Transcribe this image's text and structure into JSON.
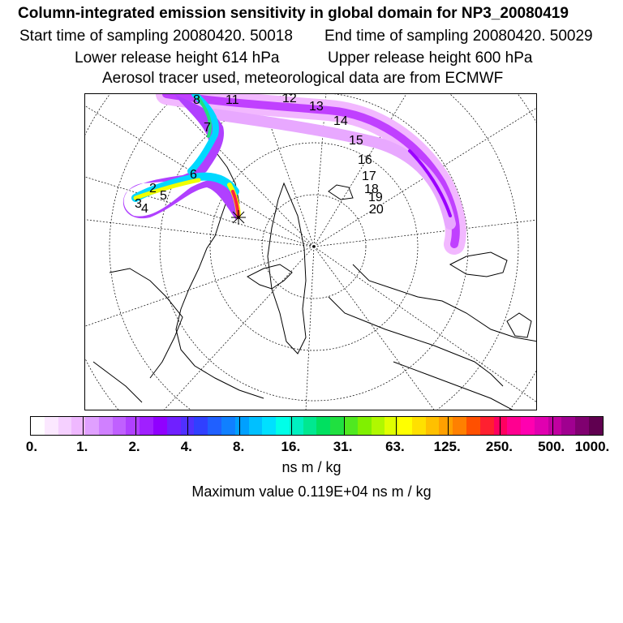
{
  "header": {
    "title": "Column-integrated emission sensitivity in global domain for NP3_20080419",
    "start_label": "Start time of sampling 20080420. 50018",
    "end_label": "End time of sampling 20080420. 50029",
    "lower_label": "Lower release height  614 hPa",
    "upper_label": "Upper release height  600 hPa",
    "info_line": "Aerosol tracer used, meteorological data are from ECMWF"
  },
  "map": {
    "day_labels": [
      "8",
      "11",
      "12",
      "13",
      "14",
      "7",
      "15",
      "16",
      "6",
      "17",
      "18",
      "19",
      "20",
      "2",
      "3",
      "4",
      "5"
    ],
    "release_marker": "release-point",
    "colors": {
      "plume_light": "#f2b8ff",
      "plume_mid": "#c040ff",
      "plume_dark": "#9a00ff",
      "core_cyan": "#00d8ff",
      "core_green": "#20e080",
      "core_yellow": "#f0ff00",
      "core_red": "#ff2040"
    }
  },
  "colorbar": {
    "colors": [
      "#ffffff",
      "#fbe8ff",
      "#f5d0ff",
      "#efb8ff",
      "#e0a0ff",
      "#d080ff",
      "#c060ff",
      "#b040ff",
      "#a020ff",
      "#9000ff",
      "#7020ff",
      "#5030ff",
      "#3040ff",
      "#2060ff",
      "#1080ff",
      "#00a0ff",
      "#00c0ff",
      "#00e0ff",
      "#00ffe8",
      "#00f0c0",
      "#00e890",
      "#00e060",
      "#20e040",
      "#50e820",
      "#80f000",
      "#b0f800",
      "#e0ff00",
      "#ffff00",
      "#ffe000",
      "#ffc000",
      "#ffa000",
      "#ff8000",
      "#ff5000",
      "#ff2030",
      "#ff0060",
      "#ff0090",
      "#ff00b0",
      "#e000b0",
      "#c000a0",
      "#a00090",
      "#800070",
      "#600050"
    ],
    "tick_labels": [
      "0.",
      "1.",
      "2.",
      "4.",
      "8.",
      "16.",
      "31.",
      "63.",
      "125.",
      "250.",
      "500.",
      "1000."
    ],
    "units": "ns m / kg",
    "max_value": "Maximum value  0.119E+04 ns m / kg"
  }
}
